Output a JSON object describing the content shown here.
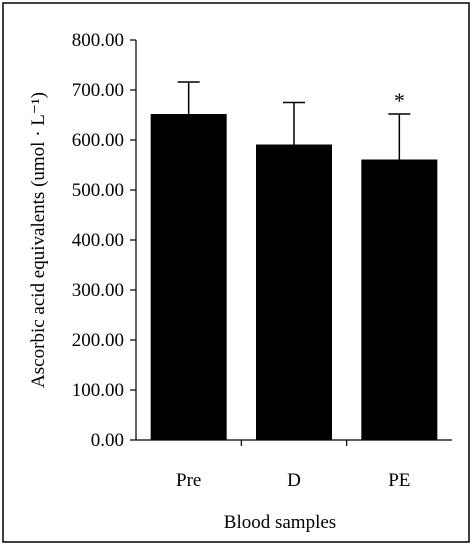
{
  "chart_data": {
    "type": "bar",
    "categories": [
      "Pre",
      "D",
      "PE"
    ],
    "values": [
      652,
      591,
      561
    ],
    "error_upper": [
      716,
      675,
      652
    ],
    "annotations": [
      {
        "category": "PE",
        "text": "*"
      }
    ],
    "xlabel": "Blood samples",
    "ylabel": "Ascorbic acid equivalents (umol · L⁻¹)",
    "ylim": [
      0,
      800
    ],
    "yticks": [
      "0.00",
      "100.00",
      "200.00",
      "300.00",
      "400.00",
      "500.00",
      "600.00",
      "700.00",
      "800.00"
    ],
    "ytick_values": [
      0,
      100,
      200,
      300,
      400,
      500,
      600,
      700,
      800
    ],
    "bar_color": "#000000",
    "grid": false,
    "legend": "none"
  }
}
